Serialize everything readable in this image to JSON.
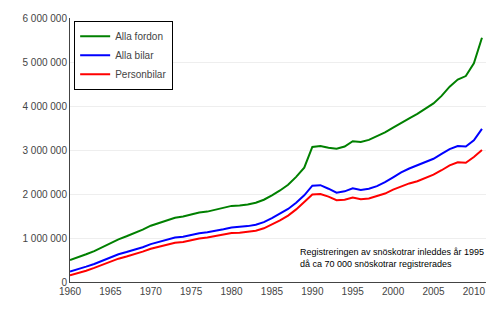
{
  "chart_data": {
    "type": "line",
    "x": [
      1960,
      1961,
      1962,
      1963,
      1964,
      1965,
      1966,
      1967,
      1968,
      1969,
      1970,
      1971,
      1972,
      1973,
      1974,
      1975,
      1976,
      1977,
      1978,
      1979,
      1980,
      1981,
      1982,
      1983,
      1984,
      1985,
      1986,
      1987,
      1988,
      1989,
      1990,
      1991,
      1992,
      1993,
      1994,
      1995,
      1996,
      1997,
      1998,
      1999,
      2000,
      2001,
      2002,
      2003,
      2004,
      2005,
      2006,
      2007,
      2008,
      2009,
      2010,
      2011
    ],
    "series": [
      {
        "name": "Alla fordon",
        "color": "#008000",
        "values": [
          500000,
          560000,
          630000,
          700000,
          790000,
          890000,
          970000,
          1040000,
          1110000,
          1190000,
          1280000,
          1340000,
          1400000,
          1460000,
          1490000,
          1530000,
          1580000,
          1600000,
          1640000,
          1690000,
          1730000,
          1740000,
          1760000,
          1800000,
          1870000,
          1970000,
          2080000,
          2210000,
          2390000,
          2600000,
          3070000,
          3090000,
          3050000,
          3030000,
          3080000,
          3200000,
          3180000,
          3230000,
          3310000,
          3400000,
          3510000,
          3620000,
          3720000,
          3820000,
          3940000,
          4060000,
          4230000,
          4440000,
          4600000,
          4680000,
          4970000,
          5550000
        ]
      },
      {
        "name": "Alla bilar",
        "color": "#0000FF",
        "values": [
          240000,
          290000,
          350000,
          410000,
          480000,
          560000,
          630000,
          680000,
          730000,
          790000,
          860000,
          910000,
          960000,
          1010000,
          1030000,
          1070000,
          1110000,
          1130000,
          1160000,
          1200000,
          1240000,
          1250000,
          1270000,
          1300000,
          1360000,
          1450000,
          1550000,
          1660000,
          1800000,
          1970000,
          2190000,
          2200000,
          2120000,
          2030000,
          2060000,
          2130000,
          2090000,
          2120000,
          2180000,
          2270000,
          2380000,
          2490000,
          2580000,
          2650000,
          2720000,
          2800000,
          2910000,
          3020000,
          3090000,
          3080000,
          3220000,
          3480000
        ]
      },
      {
        "name": "Personbilar",
        "color": "#FF0000",
        "values": [
          150000,
          195000,
          255000,
          320000,
          390000,
          465000,
          530000,
          580000,
          630000,
          690000,
          755000,
          800000,
          845000,
          890000,
          910000,
          950000,
          990000,
          1010000,
          1040000,
          1080000,
          1115000,
          1120000,
          1140000,
          1165000,
          1220000,
          1305000,
          1400000,
          1510000,
          1650000,
          1820000,
          1990000,
          2000000,
          1940000,
          1860000,
          1870000,
          1920000,
          1880000,
          1900000,
          1950000,
          2010000,
          2100000,
          2170000,
          2240000,
          2290000,
          2360000,
          2440000,
          2540000,
          2650000,
          2720000,
          2710000,
          2840000,
          3000000
        ]
      }
    ],
    "annotation": "Registreringen av snöskotrar inleddes år 1995\ndå ca 70 000 snöskotrar registrerades",
    "xlim": [
      1960,
      2011.5
    ],
    "xticks": [
      1960,
      1965,
      1970,
      1975,
      1980,
      1985,
      1990,
      1995,
      2000,
      2005,
      2010
    ],
    "ylim": [
      0,
      6000000
    ],
    "yticks": [
      0,
      {
        "value": 1000000,
        "label": "1 000 000"
      },
      {
        "value": 2000000,
        "label": "2 000 000"
      },
      {
        "value": 3000000,
        "label": "3 000 000"
      },
      {
        "value": 4000000,
        "label": "4 000 000"
      },
      {
        "value": 5000000,
        "label": "5 000 000"
      },
      {
        "value": 6000000,
        "label": "6 000 000"
      }
    ],
    "grid": true,
    "legend": "upper left"
  }
}
